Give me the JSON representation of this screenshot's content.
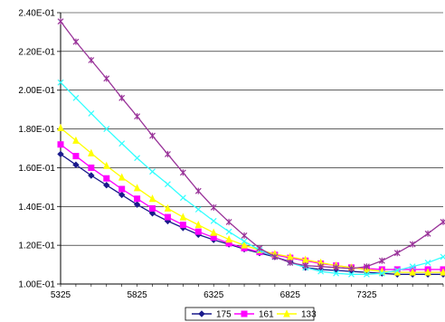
{
  "chart_data": {
    "type": "line",
    "xlim": [
      5325,
      7825
    ],
    "ylim": [
      0.1,
      0.24
    ],
    "grid": "horizontal",
    "legend_placement": "bottom",
    "x_ticks": [
      {
        "value": 5325,
        "label": "5325"
      },
      {
        "value": 5825,
        "label": "5825"
      },
      {
        "value": 6325,
        "label": "6325"
      },
      {
        "value": 6825,
        "label": "6825"
      },
      {
        "value": 7325,
        "label": "7325"
      }
    ],
    "y_ticks": [
      {
        "value": 0.1,
        "label": "1.00E-01"
      },
      {
        "value": 0.12,
        "label": "1.20E-01"
      },
      {
        "value": 0.14,
        "label": "1.40E-01"
      },
      {
        "value": 0.16,
        "label": "1.60E-01"
      },
      {
        "value": 0.18,
        "label": "1.80E-01"
      },
      {
        "value": 0.2,
        "label": "2.00E-01"
      },
      {
        "value": 0.22,
        "label": "2.20E-01"
      },
      {
        "value": 0.24,
        "label": "2.40E-01"
      }
    ],
    "x": [
      5325,
      5425,
      5525,
      5625,
      5725,
      5825,
      5925,
      6025,
      6125,
      6225,
      6325,
      6425,
      6525,
      6625,
      6725,
      6825,
      6925,
      7025,
      7125,
      7225,
      7325,
      7425,
      7525,
      7625,
      7725,
      7825
    ],
    "series": [
      {
        "name": "175",
        "color": "#1a1a8c",
        "marker": "diamond",
        "values": [
          0.167,
          0.1615,
          0.156,
          0.151,
          0.146,
          0.141,
          0.1365,
          0.1325,
          0.129,
          0.1255,
          0.1228,
          0.1205,
          0.118,
          0.116,
          0.114,
          0.1115,
          0.1085,
          0.1075,
          0.107,
          0.1065,
          0.106,
          0.1055,
          0.105,
          0.105,
          0.105,
          0.105
        ]
      },
      {
        "name": "161",
        "color": "#ff00ff",
        "marker": "square",
        "values": [
          0.172,
          0.166,
          0.16,
          0.1545,
          0.149,
          0.144,
          0.139,
          0.1345,
          0.1305,
          0.127,
          0.124,
          0.121,
          0.1185,
          0.1165,
          0.115,
          0.1135,
          0.112,
          0.1105,
          0.1095,
          0.1085,
          0.108,
          0.1075,
          0.1075,
          0.1075,
          0.1075,
          0.1075
        ]
      },
      {
        "name": "133",
        "color": "#ffff00",
        "marker": "triangle",
        "values": [
          0.1805,
          0.174,
          0.1675,
          0.161,
          0.155,
          0.1495,
          0.144,
          0.139,
          0.1345,
          0.1305,
          0.1265,
          0.123,
          0.12,
          0.1175,
          0.1155,
          0.114,
          0.1125,
          0.111,
          0.1095,
          0.1085,
          0.1075,
          0.1065,
          0.106,
          0.106,
          0.106,
          0.106
        ]
      },
      {
        "name": "",
        "color": "#33ffff",
        "marker": "x",
        "values": [
          0.204,
          0.196,
          0.188,
          0.18,
          0.1725,
          0.165,
          0.158,
          0.1515,
          0.1445,
          0.1385,
          0.1325,
          0.127,
          0.122,
          0.1175,
          0.114,
          0.111,
          0.1085,
          0.1065,
          0.1055,
          0.105,
          0.105,
          0.1055,
          0.107,
          0.109,
          0.111,
          0.114
        ]
      },
      {
        "name": "",
        "color": "#993399",
        "marker": "star",
        "values": [
          0.2355,
          0.225,
          0.2155,
          0.206,
          0.196,
          0.1865,
          0.1765,
          0.167,
          0.1575,
          0.148,
          0.1395,
          0.132,
          0.125,
          0.1185,
          0.114,
          0.111,
          0.1095,
          0.109,
          0.1085,
          0.108,
          0.109,
          0.112,
          0.116,
          0.1205,
          0.126,
          0.132
        ]
      }
    ]
  }
}
